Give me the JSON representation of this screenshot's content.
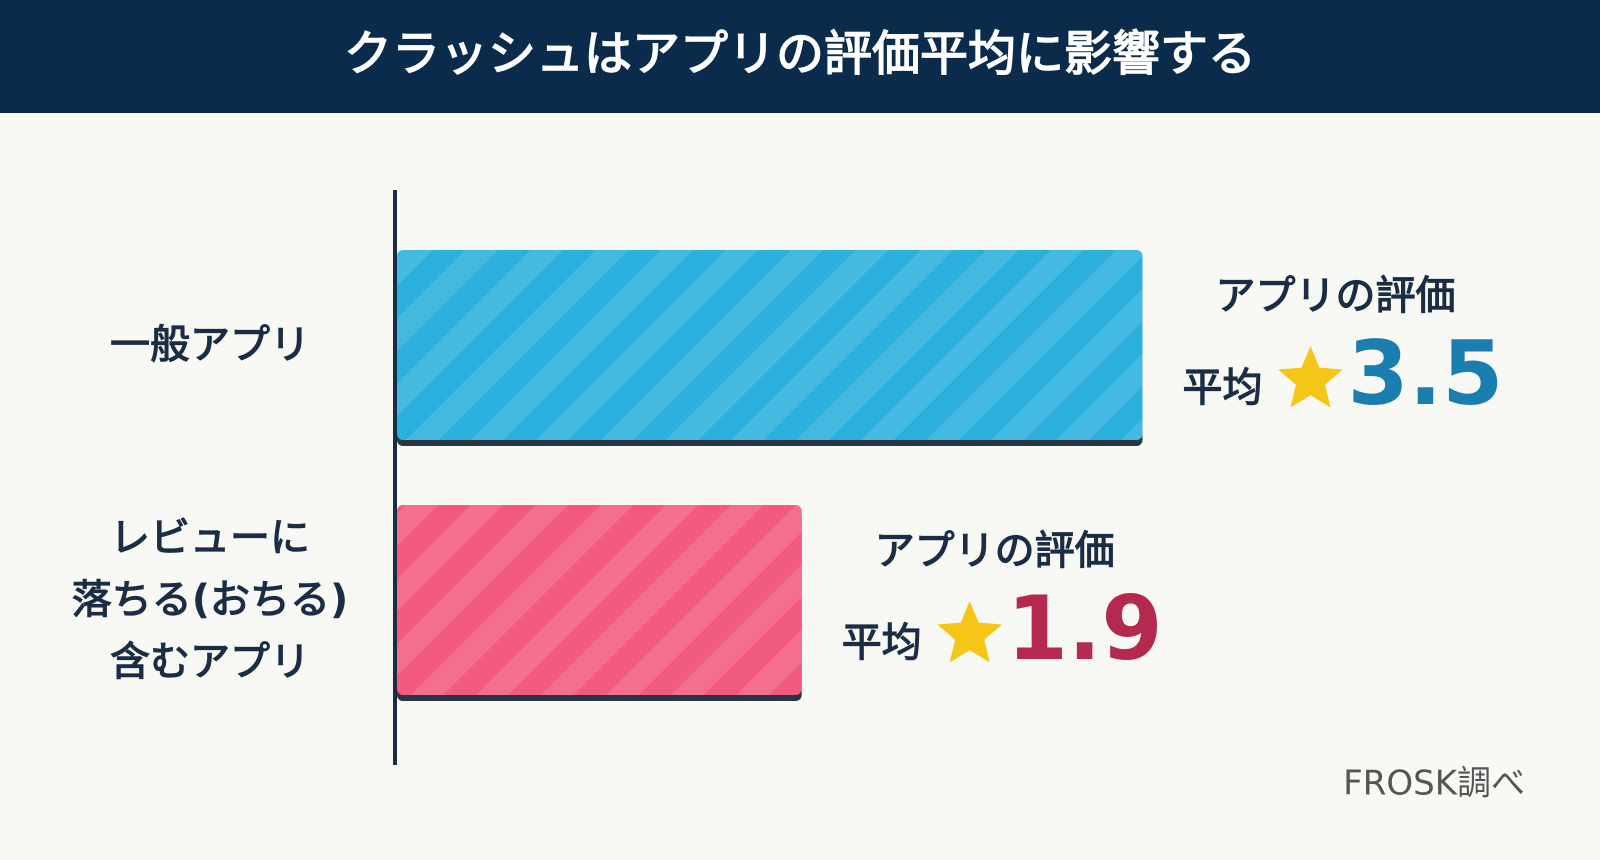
{
  "chart_data": {
    "type": "bar",
    "title": "クラッシュはアプリの評価平均に影響する",
    "categories": [
      "一般アプリ",
      "レビューに\n落ちる(おちる)\n含むアプリ"
    ],
    "series": [
      {
        "name": "アプリの評価",
        "values": [
          3.5,
          1.9
        ]
      }
    ],
    "colors": [
      "#2bb0dd",
      "#f25a7e"
    ],
    "label_colors": [
      "#1a7fae",
      "#b5294e"
    ],
    "value_caption": "アプリの評価",
    "value_prefix": "平均",
    "source": "FROSK調べ"
  }
}
